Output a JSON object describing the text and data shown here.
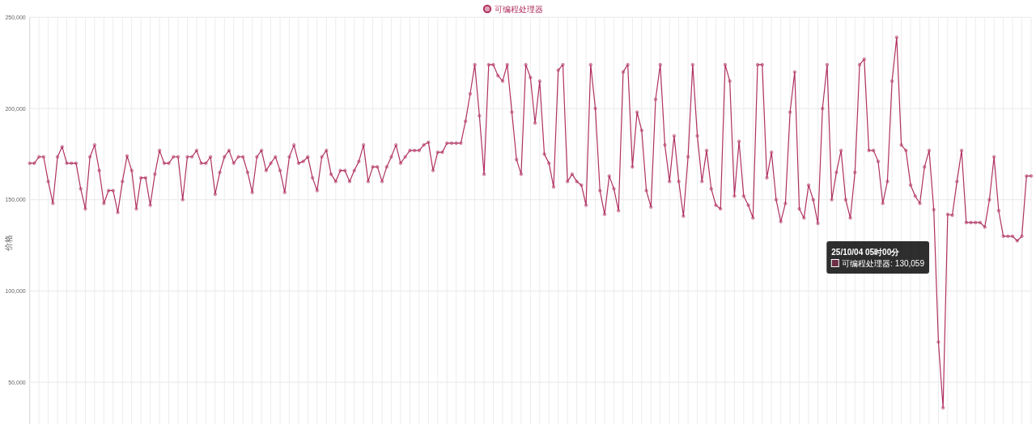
{
  "chart_data": {
    "type": "line",
    "ylabel": "价格",
    "categories": [
      null,
      null,
      null,
      null,
      null,
      null,
      null,
      null,
      null,
      null,
      null,
      null,
      null,
      null,
      null,
      null,
      null,
      null,
      null,
      null,
      null,
      null,
      null,
      null,
      null,
      null,
      null,
      null,
      null,
      null,
      null,
      null,
      null,
      null,
      null,
      null,
      null,
      null,
      null,
      null,
      null,
      null,
      null,
      null,
      null,
      null,
      null,
      null,
      null,
      null,
      null,
      null,
      null,
      null,
      null,
      null,
      null,
      null,
      null,
      null,
      null,
      null,
      null,
      null,
      null,
      null,
      null,
      null,
      null,
      null,
      null,
      null,
      null,
      null,
      null,
      null,
      null,
      null,
      null,
      null,
      null,
      null,
      null,
      null,
      null,
      null,
      null,
      null,
      null,
      null,
      null,
      null,
      null,
      null,
      null,
      null,
      null,
      null,
      null,
      null,
      null,
      null,
      null,
      null,
      null,
      null,
      null,
      null,
      null,
      null,
      null,
      null,
      null,
      null,
      null,
      null,
      null,
      null,
      null,
      null,
      null,
      null,
      null,
      null,
      null,
      null,
      null,
      null,
      null,
      null,
      null,
      null,
      null,
      null,
      null,
      null,
      null,
      null,
      null,
      null,
      null,
      null,
      null,
      null,
      null,
      null,
      null,
      null,
      null,
      null,
      null,
      null,
      null,
      null,
      null,
      null,
      null,
      null,
      null,
      null,
      null,
      null,
      null,
      null,
      null,
      null,
      null,
      null,
      null,
      null,
      null,
      null,
      null,
      null,
      null,
      null,
      null,
      null,
      null,
      null,
      null,
      null,
      null,
      null,
      null,
      null,
      null,
      null,
      null,
      null,
      null,
      null,
      null,
      null,
      null,
      null,
      null,
      null,
      null,
      null,
      null,
      null,
      null,
      null,
      null,
      null,
      null,
      null,
      null,
      null,
      null,
      null,
      null,
      null,
      null,
      null,
      null
    ],
    "series": [
      {
        "name": "可编程处理器",
        "color": "#b03060",
        "values": [
          170000,
          170000,
          173500,
          173500,
          160000,
          148000,
          173500,
          179000,
          170000,
          170000,
          170000,
          156000,
          145000,
          173500,
          180000,
          166000,
          148000,
          155000,
          155000,
          143000,
          160000,
          174000,
          166000,
          145000,
          162000,
          162000,
          147000,
          164000,
          177000,
          170000,
          170000,
          173500,
          173500,
          150000,
          173500,
          173500,
          177000,
          170000,
          170000,
          173500,
          153000,
          165000,
          173500,
          177000,
          170000,
          173500,
          173500,
          165000,
          154000,
          173500,
          177000,
          166000,
          170000,
          173500,
          166000,
          154000,
          173500,
          180000,
          170000,
          171000,
          173500,
          162000,
          155000,
          173500,
          177000,
          164000,
          160000,
          166000,
          166000,
          160000,
          166000,
          171000,
          180000,
          160000,
          168000,
          168000,
          160000,
          168000,
          173500,
          180000,
          170000,
          173500,
          177000,
          177000,
          177000,
          180000,
          181500,
          166000,
          176000,
          176000,
          181000,
          181000,
          181000,
          181000,
          193000,
          208000,
          224000,
          196000,
          164000,
          224000,
          224000,
          218000,
          215000,
          224000,
          198000,
          172000,
          164000,
          224000,
          217000,
          192000,
          215000,
          175000,
          170000,
          157000,
          221000,
          224000,
          160000,
          164000,
          160000,
          158000,
          147000,
          224000,
          200000,
          155000,
          142000,
          163000,
          156000,
          144000,
          220000,
          224000,
          168000,
          198000,
          188000,
          155000,
          146000,
          205000,
          224000,
          180000,
          160000,
          185000,
          160000,
          141000,
          173500,
          224000,
          185000,
          160000,
          177000,
          156000,
          147000,
          145000,
          224000,
          215000,
          152000,
          182000,
          152000,
          147000,
          140000,
          224000,
          224000,
          162000,
          176000,
          150000,
          138000,
          148000,
          198000,
          220000,
          145000,
          140000,
          158000,
          150000,
          137000,
          200000,
          224000,
          150000,
          165000,
          177000,
          150000,
          140000,
          165000,
          224000,
          227000,
          177000,
          177000,
          171000,
          148000,
          160000,
          215000,
          239000,
          180000,
          177000,
          158000,
          152000,
          148000,
          168000,
          177000,
          144500,
          72000,
          36000,
          142000,
          141500,
          160000,
          177000,
          137500,
          137500,
          137500,
          137500,
          135000,
          150000,
          173500,
          144000,
          130000,
          130000,
          130000,
          127500,
          130000,
          163000,
          163000
        ]
      }
    ],
    "ylim": [
      27000,
      250000
    ],
    "yticks": [
      {
        "value": 50000,
        "label": "50,000"
      },
      {
        "value": 100000,
        "label": "100,000"
      },
      {
        "value": 150000,
        "label": "150,000"
      },
      {
        "value": 200000,
        "label": "200,000"
      },
      {
        "value": 250000,
        "label": "250,000"
      }
    ],
    "tick_labels": "y",
    "grid": true,
    "legend": "top",
    "marker": "circle",
    "line_style": "solid",
    "annotations": [
      "25/10/04 05时00分",
      "可编程处理器: 130,059"
    ]
  }
}
